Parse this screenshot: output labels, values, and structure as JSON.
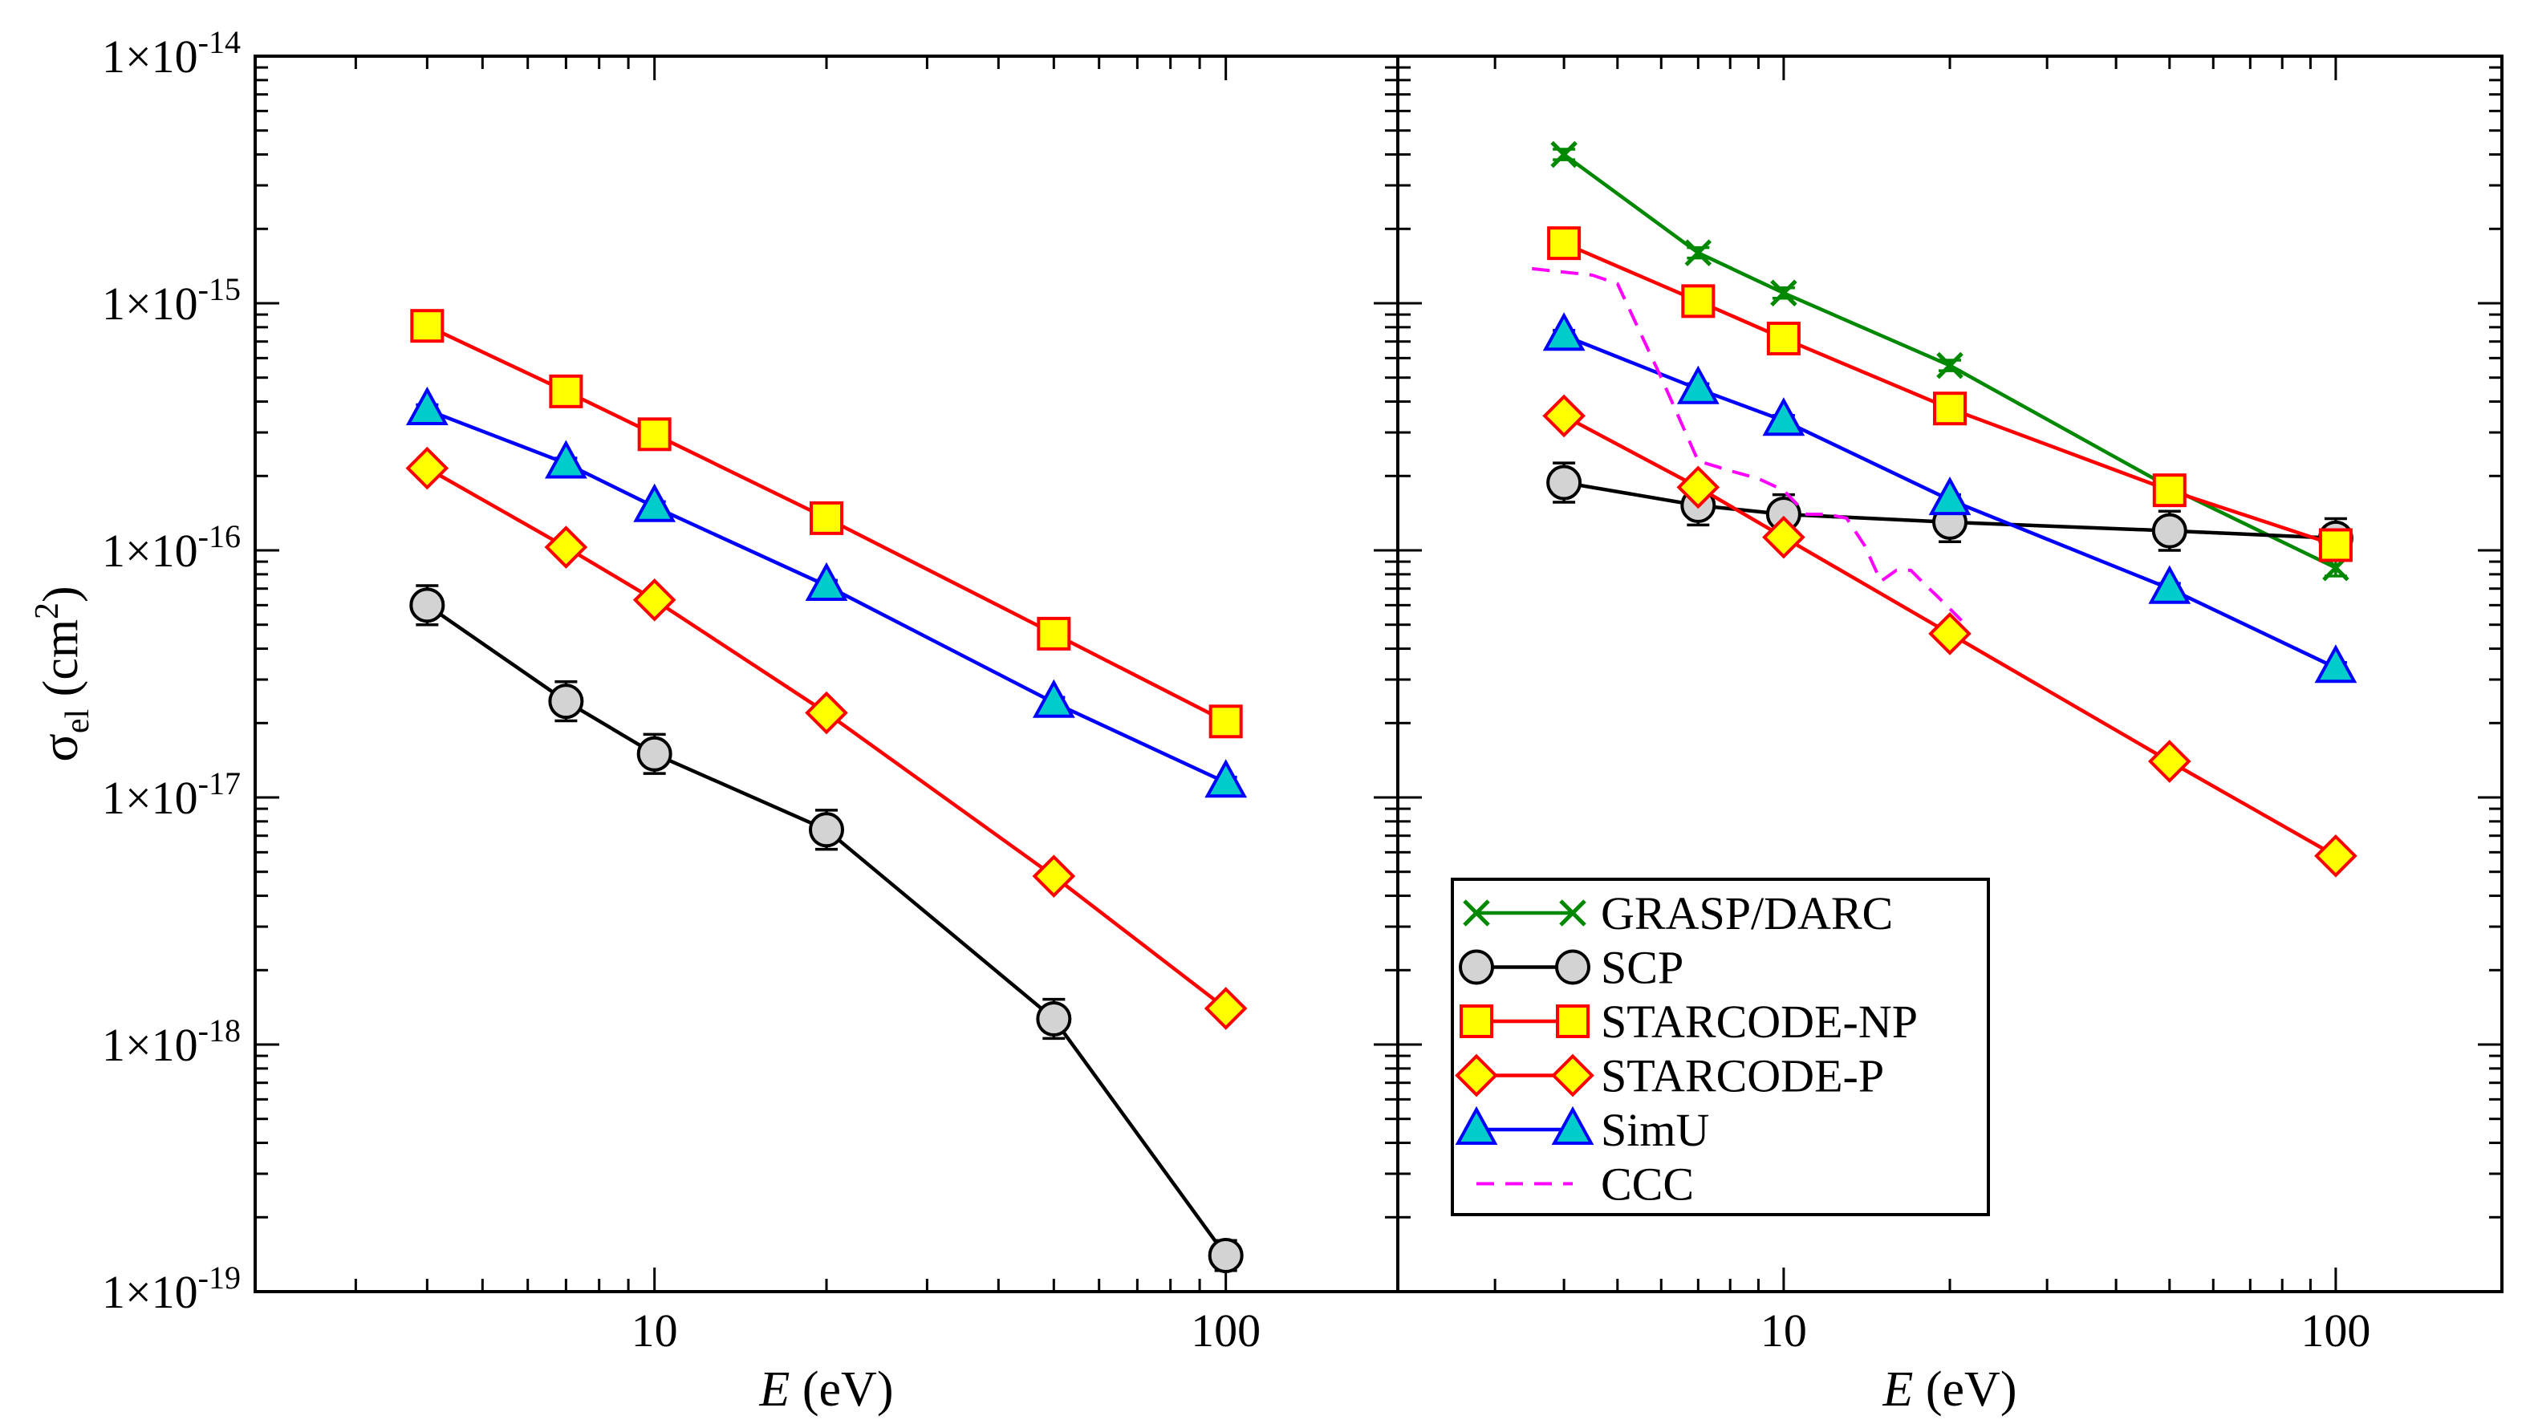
{
  "chart_data": {
    "type": "line",
    "scale": "log-log",
    "ylabel_symbol": "σ",
    "ylabel_sub": "el",
    "ylabel_unit_open": " (cm",
    "ylabel_unit_sup": "2",
    "ylabel_unit_close": ")",
    "ylim": [
      1e-19,
      1e-14
    ],
    "xlim": [
      2,
      200
    ],
    "x_tick_labels": [
      {
        "value": 10,
        "label": "10"
      },
      {
        "value": 100,
        "label": "100"
      }
    ],
    "y_tick_labels": [
      {
        "value": 1e-14,
        "mant": "1×10",
        "exp": "-14"
      },
      {
        "value": 1e-15,
        "mant": "1×10",
        "exp": "-15"
      },
      {
        "value": 1e-16,
        "mant": "1×10",
        "exp": "-16"
      },
      {
        "value": 1e-17,
        "mant": "1×10",
        "exp": "-17"
      },
      {
        "value": 1e-18,
        "mant": "1×10",
        "exp": "-18"
      },
      {
        "value": 1e-19,
        "mant": "1×10",
        "exp": "-19"
      }
    ],
    "xlabel_symbol": "E",
    "xlabel_unit": " (eV)",
    "series_styles": {
      "GRASP/DARC": {
        "line": "#008800",
        "marker": "x",
        "fill": "none",
        "dash": ""
      },
      "SCP": {
        "line": "#000000",
        "marker": "circle",
        "fill": "#d3d3d3",
        "dash": ""
      },
      "STARCODE-NP": {
        "line": "#ff0000",
        "marker": "square",
        "fill": "#ffff00",
        "dash": ""
      },
      "STARCODE-P": {
        "line": "#ff0000",
        "marker": "diamond",
        "fill": "#ffff00",
        "dash": ""
      },
      "SimU": {
        "line": "#0000ff",
        "marker": "triangle",
        "fill": "#00cccc",
        "dash": ""
      },
      "CCC": {
        "line": "#ff00ff",
        "marker": "none",
        "fill": "none",
        "dash": "22,14"
      }
    },
    "panels": [
      {
        "name": "left",
        "series": [
          {
            "name": "SCP",
            "x": [
              4,
              7,
              10,
              20,
              50,
              100
            ],
            "y": [
              6e-17,
              2.45e-17,
              1.5e-17,
              7.4e-18,
              1.27e-18,
              1.4e-19
            ],
            "err": [
              0.2,
              0.2,
              0.2,
              0.2,
              0.2,
              0.15
            ]
          },
          {
            "name": "STARCODE-NP",
            "x": [
              4,
              7,
              10,
              20,
              50,
              100
            ],
            "y": [
              8.1e-16,
              4.4e-16,
              2.95e-16,
              1.35e-16,
              4.6e-17,
              2.03e-17
            ],
            "err": [
              0.03,
              0.03,
              0.03,
              0.03,
              0.03,
              0.03
            ]
          },
          {
            "name": "STARCODE-P",
            "x": [
              4,
              7,
              10,
              20,
              50,
              100
            ],
            "y": [
              2.15e-16,
              1.03e-16,
              6.3e-17,
              2.2e-17,
              4.8e-18,
              1.4e-18
            ],
            "err": [
              0.04,
              0.04,
              0.04,
              0.04,
              0.04,
              0.04
            ]
          },
          {
            "name": "SimU",
            "x": [
              4,
              7,
              10,
              20,
              50,
              100
            ],
            "y": [
              3.7e-16,
              2.25e-16,
              1.5e-16,
              7.2e-17,
              2.42e-17,
              1.15e-17
            ],
            "err": [
              0.05,
              0.05,
              0.05,
              0.05,
              0.05,
              0.05
            ]
          }
        ]
      },
      {
        "name": "right",
        "series": [
          {
            "name": "GRASP/DARC",
            "x": [
              4,
              7,
              10,
              20,
              50,
              100
            ],
            "y": [
              4e-15,
              1.6e-15,
              1.1e-15,
              5.6e-16,
              1.8e-16,
              8.5e-17
            ],
            "err": [
              0.05,
              0.05,
              0.05,
              0.05,
              0.05,
              0.08
            ]
          },
          {
            "name": "SCP",
            "x": [
              4,
              7,
              10,
              20,
              50,
              100
            ],
            "y": [
              1.88e-16,
              1.52e-16,
              1.4e-16,
              1.3e-16,
              1.2e-16,
              1.12e-16
            ],
            "err": [
              0.2,
              0.2,
              0.2,
              0.2,
              0.2,
              0.2
            ]
          },
          {
            "name": "STARCODE-NP",
            "x": [
              4,
              7,
              10,
              20,
              50,
              100
            ],
            "y": [
              1.75e-15,
              1.02e-15,
              7.2e-16,
              3.75e-16,
              1.75e-16,
              1.05e-16
            ],
            "err": [
              0.03,
              0.03,
              0.03,
              0.03,
              0.03,
              0.03
            ]
          },
          {
            "name": "STARCODE-P",
            "x": [
              4,
              7,
              10,
              20,
              50,
              100
            ],
            "y": [
              3.5e-16,
              1.8e-16,
              1.13e-16,
              4.6e-17,
              1.4e-17,
              5.8e-18
            ],
            "err": [
              0.04,
              0.04,
              0.04,
              0.04,
              0.04,
              0.04
            ]
          },
          {
            "name": "SimU",
            "x": [
              4,
              7,
              10,
              20,
              50,
              100
            ],
            "y": [
              7.4e-16,
              4.5e-16,
              3.35e-16,
              1.6e-16,
              7e-17,
              3.35e-17
            ],
            "err": [
              0.05,
              0.05,
              0.05,
              0.05,
              0.05,
              0.05
            ]
          },
          {
            "name": "CCC",
            "x": [
              3.5,
              4.5,
              5,
              6,
              7,
              8,
              9,
              10,
              11,
              12,
              13,
              14,
              15,
              16,
              17,
              18,
              19,
              20,
              21
            ],
            "y": [
              1.38e-15,
              1.3e-15,
              1.2e-15,
              5e-16,
              2.3e-16,
              2.1e-16,
              1.95e-16,
              1.75e-16,
              1.4e-16,
              1.4e-16,
              1.35e-16,
              1.05e-16,
              7.5e-17,
              8.3e-17,
              8.3e-17,
              7.3e-17,
              6.5e-17,
              5.8e-17,
              5.2e-17
            ],
            "err": []
          }
        ]
      }
    ],
    "legend": {
      "placement": "bottom-left of right panel",
      "entries": [
        "GRASP/DARC",
        "SCP",
        "STARCODE-NP",
        "STARCODE-P",
        "SimU",
        "CCC"
      ]
    }
  }
}
